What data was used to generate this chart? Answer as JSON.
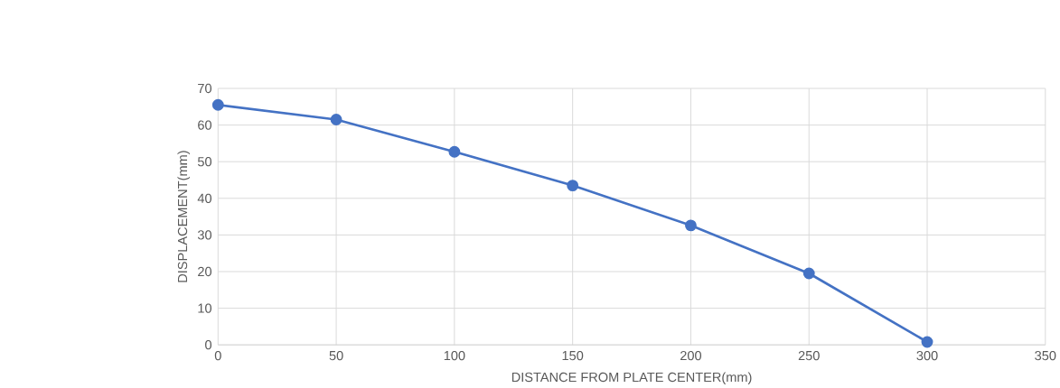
{
  "chart_data": {
    "type": "line",
    "xlabel": "DISTANCE FROM PLATE CENTER(mm)",
    "ylabel": "DISPLACEMENT(mm)",
    "x": [
      0,
      50,
      100,
      150,
      200,
      250,
      300
    ],
    "series": [
      {
        "color": "#4472c4",
        "values": [
          65.5,
          61.5,
          52.7,
          43.5,
          32.6,
          19.5,
          0.8
        ]
      }
    ],
    "xlim": [
      0,
      350
    ],
    "xticks": [
      0,
      50,
      100,
      150,
      200,
      250,
      300,
      350
    ],
    "ylim": [
      0,
      70
    ],
    "yticks": [
      0,
      10,
      20,
      30,
      40,
      50,
      60,
      70
    ],
    "grid": true,
    "marker": "circle",
    "line_style": "solid"
  }
}
